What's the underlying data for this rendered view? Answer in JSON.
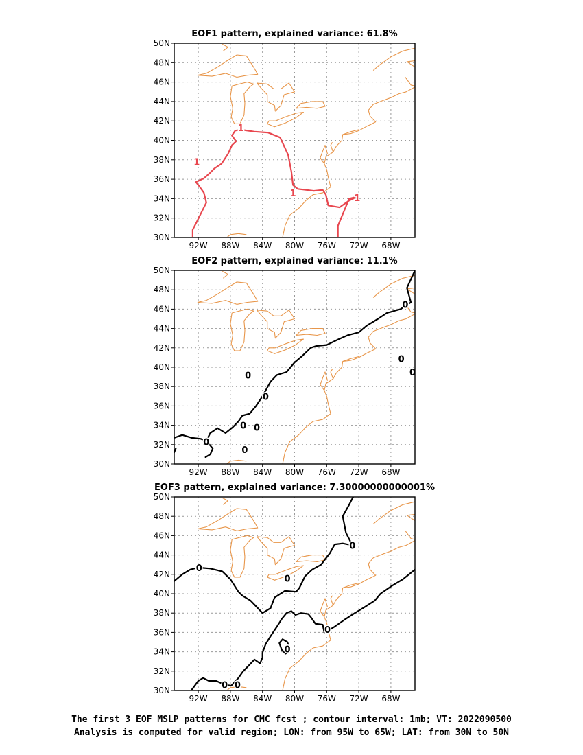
{
  "caption": {
    "line1": "The first 3 EOF MSLP patterns for CMC fcst ; contour interval: 1mb; VT: 2022090500",
    "line2": "Analysis is computed for valid region; LON: from 95W to 65W; LAT: from 30N to 50N"
  },
  "colors": {
    "coast": "#e8964a",
    "contour_eof1": "#e8474f",
    "contour_eof2": "#000000",
    "contour_eof3": "#000000",
    "grid": "#999999"
  },
  "chart_data": [
    {
      "type": "contour",
      "title": "EOF1 pattern, explained variance: 61.8%",
      "xlim": [
        -95,
        -65
      ],
      "ylim": [
        30,
        50
      ],
      "x_ticks": [
        -92,
        -88,
        -84,
        -80,
        -76,
        -72,
        -68
      ],
      "x_tick_labels": [
        "92W",
        "88W",
        "84W",
        "80W",
        "76W",
        "72W",
        "68W"
      ],
      "y_ticks": [
        30,
        32,
        34,
        36,
        38,
        40,
        42,
        44,
        46,
        48,
        50
      ],
      "y_tick_labels": [
        "30N",
        "32N",
        "34N",
        "36N",
        "38N",
        "40N",
        "42N",
        "44N",
        "46N",
        "48N",
        "50N"
      ],
      "grid": true,
      "contour_color": "#e8474f",
      "contours": [
        {
          "level": "1",
          "points": [
            [
              -92.7,
              30
            ],
            [
              -92.7,
              30.8
            ],
            [
              -92.2,
              31.6
            ],
            [
              -91.6,
              32.6
            ],
            [
              -91,
              33.6
            ],
            [
              -91.3,
              34.6
            ],
            [
              -91.9,
              35.3
            ],
            [
              -92.3,
              35.7
            ],
            [
              -91.3,
              36.1
            ],
            [
              -90.6,
              36.6
            ],
            [
              -90,
              37.1
            ],
            [
              -89.1,
              37.6
            ],
            [
              -88.3,
              38.6
            ],
            [
              -87.8,
              39.5
            ],
            [
              -87.3,
              39.9
            ],
            [
              -87.8,
              40.5
            ],
            [
              -87.4,
              41
            ],
            [
              -86.7,
              41.1
            ],
            [
              -85,
              40.9
            ],
            [
              -83.3,
              40.8
            ],
            [
              -81.8,
              40.3
            ],
            [
              -81.3,
              39.4
            ],
            [
              -80.8,
              38.5
            ],
            [
              -80.4,
              36.8
            ],
            [
              -80.2,
              35.4
            ],
            [
              -79.6,
              35
            ],
            [
              -78.6,
              34.9
            ],
            [
              -77.6,
              34.8
            ],
            [
              -76.5,
              34.9
            ],
            [
              -76.1,
              34.4
            ],
            [
              -75.8,
              33.3
            ],
            [
              -74.4,
              33.1
            ],
            [
              -73.2,
              33.8
            ],
            [
              -72.2,
              34.2
            ],
            [
              -73.2,
              34
            ],
            [
              -74.1,
              32.2
            ],
            [
              -74.6,
              31.2
            ],
            [
              -74.6,
              30
            ]
          ]
        }
      ],
      "contour_labels": [
        {
          "text": "1",
          "lon": -86.7,
          "lat": 41.3
        },
        {
          "text": "1",
          "lon": -92.2,
          "lat": 37.8
        },
        {
          "text": "1",
          "lon": -80.2,
          "lat": 34.6
        },
        {
          "text": "1",
          "lon": -72.2,
          "lat": 34.1
        }
      ]
    },
    {
      "type": "contour",
      "title": "EOF2 pattern, explained variance: 11.1%",
      "xlim": [
        -95,
        -65
      ],
      "ylim": [
        30,
        50
      ],
      "x_ticks": [
        -92,
        -88,
        -84,
        -80,
        -76,
        -72,
        -68
      ],
      "x_tick_labels": [
        "92W",
        "88W",
        "84W",
        "80W",
        "76W",
        "72W",
        "68W"
      ],
      "y_ticks": [
        30,
        32,
        34,
        36,
        38,
        40,
        42,
        44,
        46,
        48,
        50
      ],
      "y_tick_labels": [
        "30N",
        "32N",
        "34N",
        "36N",
        "38N",
        "40N",
        "42N",
        "44N",
        "46N",
        "48N",
        "50N"
      ],
      "grid": true,
      "contour_color": "#000000",
      "contours": [
        {
          "level": "0",
          "points": [
            [
              -95,
              32.7
            ],
            [
              -94,
              33
            ],
            [
              -92.8,
              32.7
            ],
            [
              -91.7,
              32.6
            ],
            [
              -91,
              32.4
            ],
            [
              -90.5,
              33.2
            ],
            [
              -89.6,
              33.7
            ],
            [
              -88.6,
              33.2
            ],
            [
              -87.7,
              33.8
            ],
            [
              -87,
              34.4
            ],
            [
              -86.5,
              35
            ],
            [
              -85.6,
              35.2
            ],
            [
              -84.8,
              36
            ],
            [
              -84,
              37
            ],
            [
              -83,
              38.5
            ],
            [
              -82.2,
              39.2
            ],
            [
              -81,
              39.5
            ],
            [
              -80,
              40.5
            ],
            [
              -79,
              41.2
            ],
            [
              -78,
              42
            ],
            [
              -77.3,
              42.2
            ],
            [
              -76,
              42.3
            ],
            [
              -74.5,
              42.9
            ],
            [
              -73.4,
              43.3
            ],
            [
              -72,
              43.6
            ],
            [
              -71,
              44.3
            ],
            [
              -69.6,
              45
            ],
            [
              -68.5,
              45.6
            ],
            [
              -66.8,
              46
            ],
            [
              -65.5,
              46.7
            ],
            [
              -66,
              48.2
            ],
            [
              -65,
              50
            ]
          ]
        },
        {
          "level": "0",
          "points": [
            [
              -91.1,
              30.7
            ],
            [
              -90.5,
              31
            ],
            [
              -90.2,
              31.6
            ],
            [
              -90.8,
              32.2
            ]
          ]
        },
        {
          "level": "0",
          "points": [
            [
              -95,
              31.2
            ],
            [
              -94.8,
              31.6
            ]
          ]
        }
      ],
      "contour_labels": [
        {
          "text": "0",
          "lon": -85.8,
          "lat": 39.2
        },
        {
          "text": "0",
          "lon": -83.6,
          "lat": 37
        },
        {
          "text": "0",
          "lon": -91,
          "lat": 32.3
        },
        {
          "text": "0",
          "lon": -86.4,
          "lat": 34
        },
        {
          "text": "0",
          "lon": -84.7,
          "lat": 33.8
        },
        {
          "text": "0",
          "lon": -86.2,
          "lat": 31.5
        },
        {
          "text": "0",
          "lon": -66.2,
          "lat": 46.5
        },
        {
          "text": "0",
          "lon": -66.7,
          "lat": 40.9
        },
        {
          "text": "0",
          "lon": -65.3,
          "lat": 39.5
        }
      ]
    },
    {
      "type": "contour",
      "title": "EOF3 pattern, explained variance: 7.30000000000001%",
      "xlim": [
        -95,
        -65
      ],
      "ylim": [
        30,
        50
      ],
      "x_ticks": [
        -92,
        -88,
        -84,
        -80,
        -76,
        -72,
        -68
      ],
      "x_tick_labels": [
        "92W",
        "88W",
        "84W",
        "80W",
        "76W",
        "72W",
        "68W"
      ],
      "y_ticks": [
        30,
        32,
        34,
        36,
        38,
        40,
        42,
        44,
        46,
        48,
        50
      ],
      "y_tick_labels": [
        "30N",
        "32N",
        "34N",
        "36N",
        "38N",
        "40N",
        "42N",
        "44N",
        "46N",
        "48N",
        "50N"
      ],
      "grid": true,
      "contour_color": "#000000",
      "contours": [
        {
          "level": "0",
          "points": [
            [
              -95,
              41.3
            ],
            [
              -94,
              42
            ],
            [
              -93,
              42.5
            ],
            [
              -92,
              42.7
            ],
            [
              -90.5,
              42.6
            ],
            [
              -89,
              42.3
            ],
            [
              -88,
              41.5
            ],
            [
              -87,
              40.2
            ],
            [
              -86.5,
              39.8
            ],
            [
              -85.5,
              39.3
            ],
            [
              -84.8,
              38.7
            ],
            [
              -84,
              38
            ],
            [
              -83,
              38.5
            ],
            [
              -82.5,
              39.6
            ],
            [
              -81.2,
              40.3
            ],
            [
              -79.8,
              40.2
            ],
            [
              -79.4,
              40.6
            ],
            [
              -78.7,
              41.8
            ],
            [
              -77.8,
              42.5
            ],
            [
              -76.7,
              43
            ],
            [
              -75.6,
              44.2
            ],
            [
              -75,
              45.1
            ],
            [
              -74,
              45.2
            ],
            [
              -72.8,
              45
            ],
            [
              -73.6,
              46.3
            ],
            [
              -74,
              48
            ],
            [
              -73.2,
              49.2
            ],
            [
              -72.7,
              50
            ]
          ]
        },
        {
          "level": "0",
          "points": [
            [
              -65,
              42.5
            ],
            [
              -66.5,
              41.5
            ],
            [
              -67.9,
              40.8
            ],
            [
              -69.3,
              40
            ],
            [
              -70,
              39.3
            ],
            [
              -71.3,
              38.6
            ],
            [
              -72.5,
              38
            ],
            [
              -73.8,
              37.3
            ],
            [
              -75,
              36.6
            ],
            [
              -75.6,
              36.3
            ],
            [
              -76.3,
              36
            ],
            [
              -76.5,
              36.8
            ],
            [
              -77.4,
              36.9
            ],
            [
              -78,
              37.6
            ],
            [
              -78.3,
              37.9
            ],
            [
              -79.2,
              38
            ],
            [
              -79.9,
              37.8
            ],
            [
              -80.4,
              38.2
            ],
            [
              -81,
              38
            ],
            [
              -81.6,
              37.4
            ],
            [
              -82.2,
              36.6
            ],
            [
              -83,
              35.6
            ],
            [
              -83.6,
              34.8
            ],
            [
              -84,
              33.9
            ],
            [
              -84,
              33.4
            ],
            [
              -84.3,
              32.8
            ],
            [
              -85,
              33.2
            ],
            [
              -85.8,
              32.5
            ],
            [
              -86.4,
              32
            ],
            [
              -87,
              31.3
            ],
            [
              -87.9,
              30.5
            ],
            [
              -88.7,
              30.6
            ],
            [
              -89.8,
              31
            ],
            [
              -90.7,
              31
            ],
            [
              -91.4,
              31.3
            ],
            [
              -92,
              31
            ],
            [
              -92.7,
              30.2
            ],
            [
              -92.9,
              30
            ]
          ]
        },
        {
          "level": "0",
          "points": [
            [
              -81.6,
              34.2
            ],
            [
              -81.1,
              33.8
            ],
            [
              -80.6,
              34.3
            ],
            [
              -80.9,
              35
            ],
            [
              -81.5,
              35.3
            ],
            [
              -81.9,
              34.9
            ],
            [
              -81.6,
              34.2
            ]
          ]
        }
      ],
      "contour_labels": [
        {
          "text": "0",
          "lon": -91.9,
          "lat": 42.7
        },
        {
          "text": "0",
          "lon": -80.9,
          "lat": 41.6
        },
        {
          "text": "0",
          "lon": -72.8,
          "lat": 45
        },
        {
          "text": "0",
          "lon": -80.9,
          "lat": 34.3
        },
        {
          "text": "0",
          "lon": -75.9,
          "lat": 36.3
        },
        {
          "text": "0",
          "lon": -88.7,
          "lat": 30.6
        },
        {
          "text": "0",
          "lon": -87.1,
          "lat": 30.6
        }
      ]
    }
  ]
}
